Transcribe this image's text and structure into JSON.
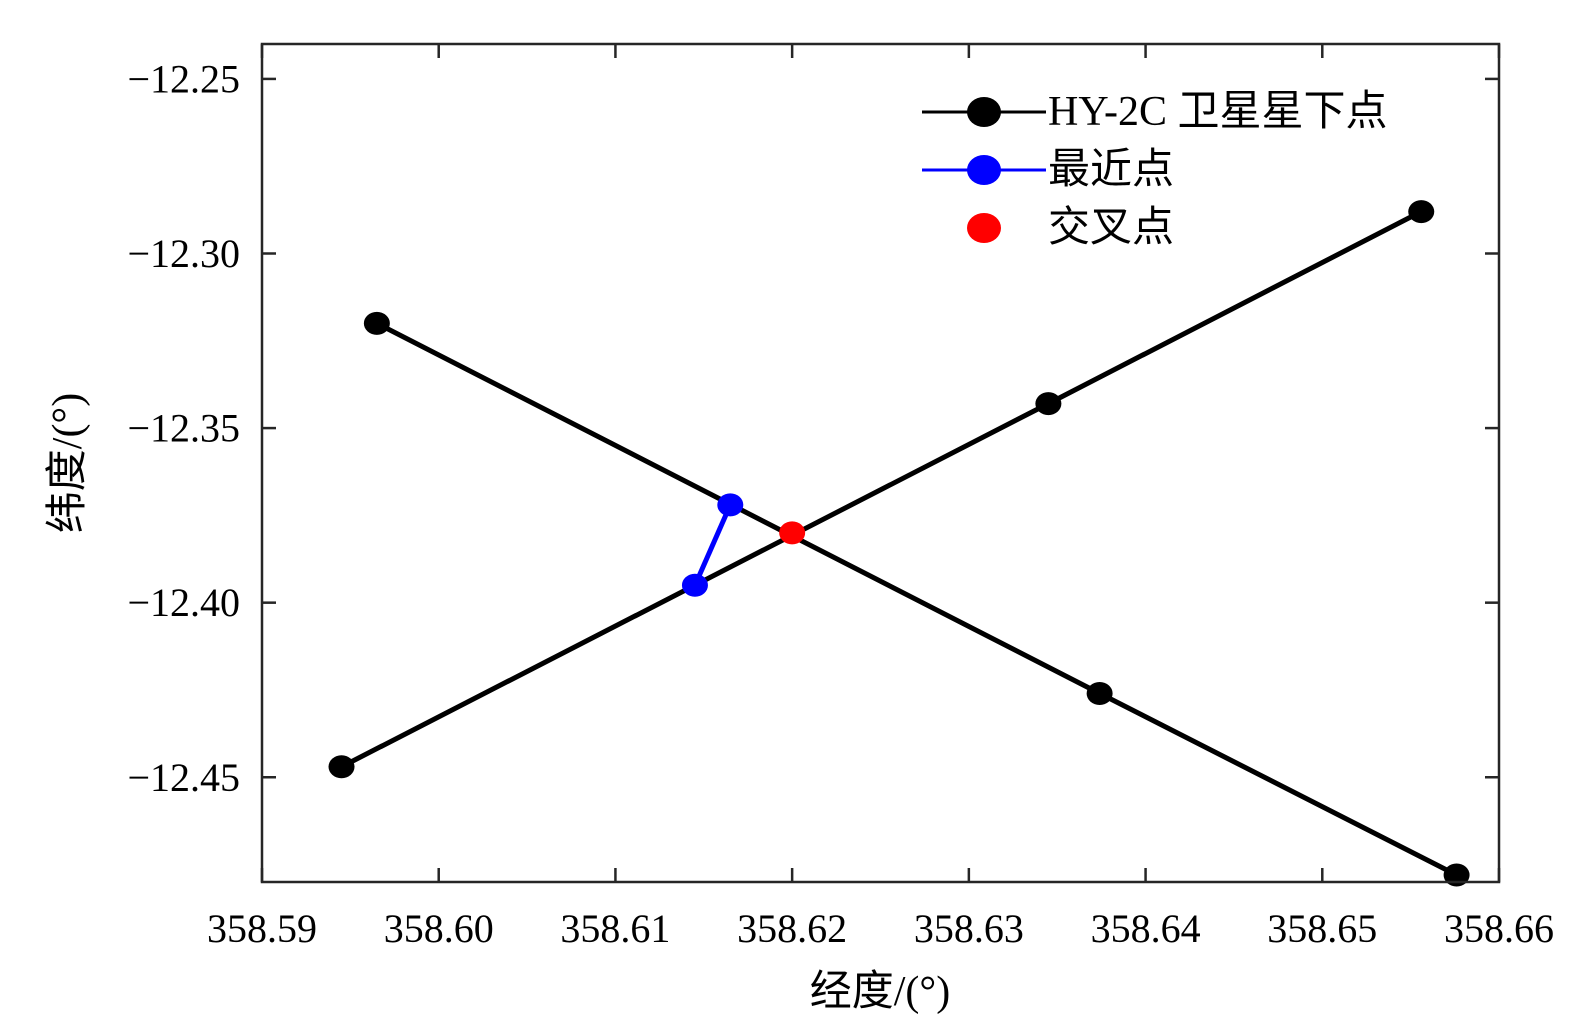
{
  "chart_data": {
    "type": "line",
    "title": "",
    "xlabel": "经度/(°)",
    "ylabel": "纬度/(°)",
    "xlim": [
      358.59,
      358.66
    ],
    "ylim": [
      -12.48,
      -12.24
    ],
    "xticks": [
      358.59,
      358.6,
      358.61,
      358.62,
      358.63,
      358.64,
      358.65,
      358.66
    ],
    "xtick_labels": [
      "358.59",
      "358.60",
      "358.61",
      "358.62",
      "358.63",
      "358.64",
      "358.65",
      "358.66"
    ],
    "yticks": [
      -12.25,
      -12.3,
      -12.35,
      -12.4,
      -12.45
    ],
    "ytick_labels": [
      "−12.25",
      "−12.30",
      "−12.35",
      "−12.40",
      "−12.45"
    ],
    "grid": false,
    "legend_position": "top-right",
    "series": [
      {
        "name": "HY-2C 卫星星下点",
        "role": "track",
        "color": "#000000",
        "marker": "circle",
        "line": true,
        "legend": true,
        "points": [
          [
            358.5965,
            -12.32
          ],
          [
            358.6374,
            -12.426
          ],
          [
            358.6576,
            -12.478
          ]
        ]
      },
      {
        "name": "HY-2C 卫星星下点",
        "role": "track",
        "color": "#000000",
        "marker": "circle",
        "line": true,
        "legend": false,
        "points": [
          [
            358.5945,
            -12.447
          ],
          [
            358.6345,
            -12.343
          ],
          [
            358.6556,
            -12.288
          ]
        ]
      },
      {
        "name": "最近点",
        "role": "nearest",
        "color": "#0000ff",
        "marker": "circle",
        "line": true,
        "legend": true,
        "points": [
          [
            358.6165,
            -12.372
          ],
          [
            358.6145,
            -12.395
          ]
        ]
      },
      {
        "name": "交叉点",
        "role": "crossover",
        "color": "#ff0000",
        "marker": "circle",
        "line": false,
        "legend": true,
        "points": [
          [
            358.62,
            -12.38
          ]
        ]
      }
    ]
  }
}
